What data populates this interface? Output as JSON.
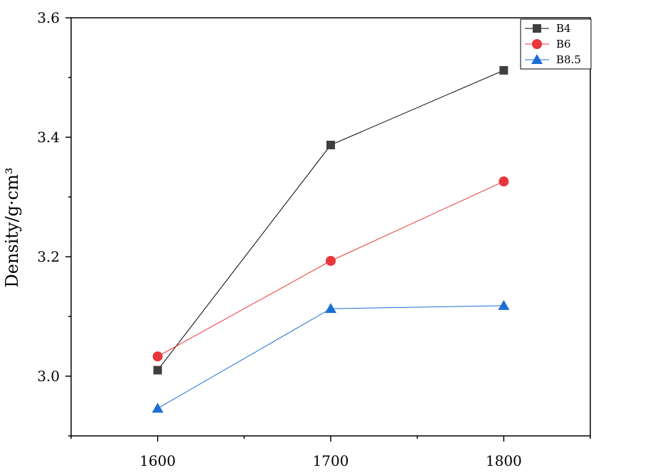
{
  "chart_data": {
    "type": "line",
    "title": "",
    "xlabel": "",
    "ylabel": "Density/g·cm³",
    "x": [
      1600,
      1700,
      1800
    ],
    "xlim": [
      1550,
      1850
    ],
    "ylim": [
      2.9,
      3.6
    ],
    "xticks": [
      "1600",
      "1700",
      "1800"
    ],
    "yticks": [
      "3.0",
      "3.2",
      "3.4",
      "3.6"
    ],
    "grid": false,
    "legend_position": "top-right",
    "series": [
      {
        "name": "B4",
        "values": [
          3.01,
          3.387,
          3.512
        ],
        "color": "#3f3f3f",
        "line_color": "#000000",
        "marker": "square"
      },
      {
        "name": "B6",
        "values": [
          3.033,
          3.193,
          3.326
        ],
        "color": "#e8363a",
        "line_color": "#e8363a",
        "marker": "circle"
      },
      {
        "name": "B8.5",
        "values": [
          2.946,
          3.113,
          3.118
        ],
        "color": "#1c6fd6",
        "line_color": "#1c6fd6",
        "marker": "triangle"
      }
    ]
  }
}
